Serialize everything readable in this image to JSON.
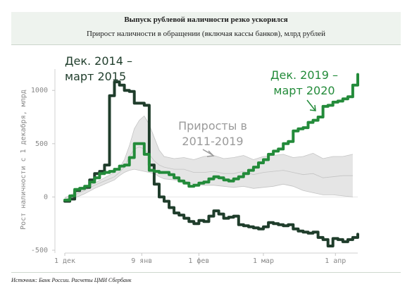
{
  "header": {
    "title": "Выпуск рублевой наличности резко ускорился",
    "subtitle": "Прирост наличности в обращении (включая кассы банков), млрд рублей"
  },
  "source": "Источник: Банк России. Расчеты ЦМИ Сбербанк",
  "chart_data": {
    "type": "line",
    "title": "Выпуск рублевой наличности резко ускорился",
    "subtitle": "Прирост наличности в обращении (включая кассы банков), млрд рублей",
    "ylabel": "Рост наличности с 1 декабря, млрд",
    "xlabel": "",
    "ylim": [
      -500,
      1200
    ],
    "xlim": [
      0,
      118
    ],
    "y_ticks": [
      -500,
      0,
      500,
      1000
    ],
    "x_ticks": [
      {
        "x": 0,
        "label": "1 дек"
      },
      {
        "x": 31,
        "label": "9 янв"
      },
      {
        "x": 54,
        "label": "1 фев"
      },
      {
        "x": 80,
        "label": "1 мар"
      },
      {
        "x": 109,
        "label": "1 апр"
      }
    ],
    "grid": false,
    "annotations": [
      {
        "id": "ann_2014",
        "lines": [
          "Дек. 2014 –",
          "март 2015"
        ],
        "color": "#1f3d2b"
      },
      {
        "id": "ann_range",
        "lines": [
          "Приросты в",
          "2011-2019"
        ],
        "color": "#9a9a9a"
      },
      {
        "id": "ann_2019",
        "lines": [
          "Дек. 2019 –",
          "март 2020"
        ],
        "color": "#238b3a"
      }
    ],
    "band": {
      "name": "Приросты в 2011-2019",
      "x": [
        0,
        4,
        8,
        12,
        16,
        20,
        22,
        24,
        26,
        28,
        30,
        32,
        34,
        36,
        38,
        40,
        44,
        48,
        52,
        56,
        60,
        64,
        68,
        72,
        76,
        80,
        84,
        88,
        92,
        96,
        100,
        104,
        108,
        112,
        116
      ],
      "upper": [
        -10,
        40,
        90,
        130,
        180,
        230,
        270,
        350,
        480,
        640,
        720,
        760,
        680,
        560,
        440,
        380,
        360,
        370,
        350,
        380,
        390,
        360,
        370,
        390,
        350,
        380,
        390,
        400,
        370,
        380,
        410,
        360,
        380,
        380,
        400
      ],
      "lower": [
        -40,
        -10,
        30,
        80,
        120,
        160,
        200,
        230,
        250,
        260,
        250,
        240,
        230,
        220,
        190,
        170,
        160,
        150,
        120,
        110,
        110,
        100,
        90,
        100,
        80,
        90,
        100,
        120,
        100,
        60,
        40,
        20,
        20,
        10,
        0
      ],
      "median": [
        -30,
        20,
        60,
        110,
        150,
        190,
        230,
        280,
        380,
        450,
        470,
        450,
        400,
        340,
        300,
        280,
        260,
        260,
        230,
        230,
        240,
        220,
        220,
        240,
        210,
        230,
        240,
        250,
        230,
        210,
        220,
        180,
        190,
        200,
        200
      ]
    },
    "series": [
      {
        "name": "Дек. 2014 – март 2015",
        "color": "#1f3d2b",
        "x": [
          0,
          2,
          4,
          6,
          8,
          10,
          12,
          14,
          16,
          18,
          20,
          22,
          24,
          26,
          28,
          30,
          32,
          34,
          36,
          38,
          40,
          42,
          44,
          46,
          48,
          50,
          52,
          54,
          56,
          58,
          60,
          62,
          64,
          66,
          68,
          70,
          72,
          74,
          76,
          78,
          80,
          82,
          84,
          86,
          88,
          90,
          92,
          94,
          96,
          98,
          100,
          102,
          104,
          106,
          108,
          110,
          112,
          114,
          116,
          118
        ],
        "y": [
          -40,
          -20,
          60,
          80,
          90,
          160,
          220,
          240,
          300,
          950,
          1080,
          1050,
          1000,
          990,
          880,
          880,
          860,
          300,
          120,
          0,
          -40,
          -100,
          -150,
          -170,
          -200,
          -230,
          -250,
          -220,
          -230,
          -180,
          -130,
          -160,
          -200,
          -190,
          -180,
          -260,
          -270,
          -280,
          -290,
          -300,
          -280,
          -240,
          -250,
          -260,
          -270,
          -260,
          -300,
          -320,
          -330,
          -340,
          -330,
          -380,
          -400,
          -460,
          -390,
          -400,
          -420,
          -400,
          -380,
          -350
        ]
      },
      {
        "name": "Дек. 2019 – март 2020",
        "color": "#238b3a",
        "x": [
          0,
          2,
          4,
          6,
          8,
          10,
          12,
          14,
          16,
          18,
          20,
          22,
          24,
          26,
          28,
          30,
          32,
          34,
          36,
          38,
          40,
          42,
          44,
          46,
          48,
          50,
          52,
          54,
          56,
          58,
          60,
          62,
          64,
          66,
          68,
          70,
          72,
          74,
          76,
          78,
          80,
          82,
          84,
          86,
          88,
          90,
          92,
          94,
          96,
          98,
          100,
          102,
          104,
          106,
          108,
          110,
          112,
          114,
          116,
          118
        ],
        "y": [
          -30,
          10,
          70,
          80,
          100,
          140,
          180,
          220,
          230,
          240,
          260,
          290,
          300,
          370,
          500,
          500,
          400,
          250,
          240,
          230,
          230,
          210,
          180,
          150,
          130,
          100,
          110,
          130,
          140,
          170,
          190,
          180,
          160,
          150,
          170,
          190,
          220,
          250,
          280,
          320,
          350,
          400,
          430,
          450,
          500,
          520,
          620,
          640,
          650,
          700,
          720,
          750,
          850,
          860,
          890,
          900,
          920,
          940,
          1050,
          1150
        ]
      }
    ]
  }
}
